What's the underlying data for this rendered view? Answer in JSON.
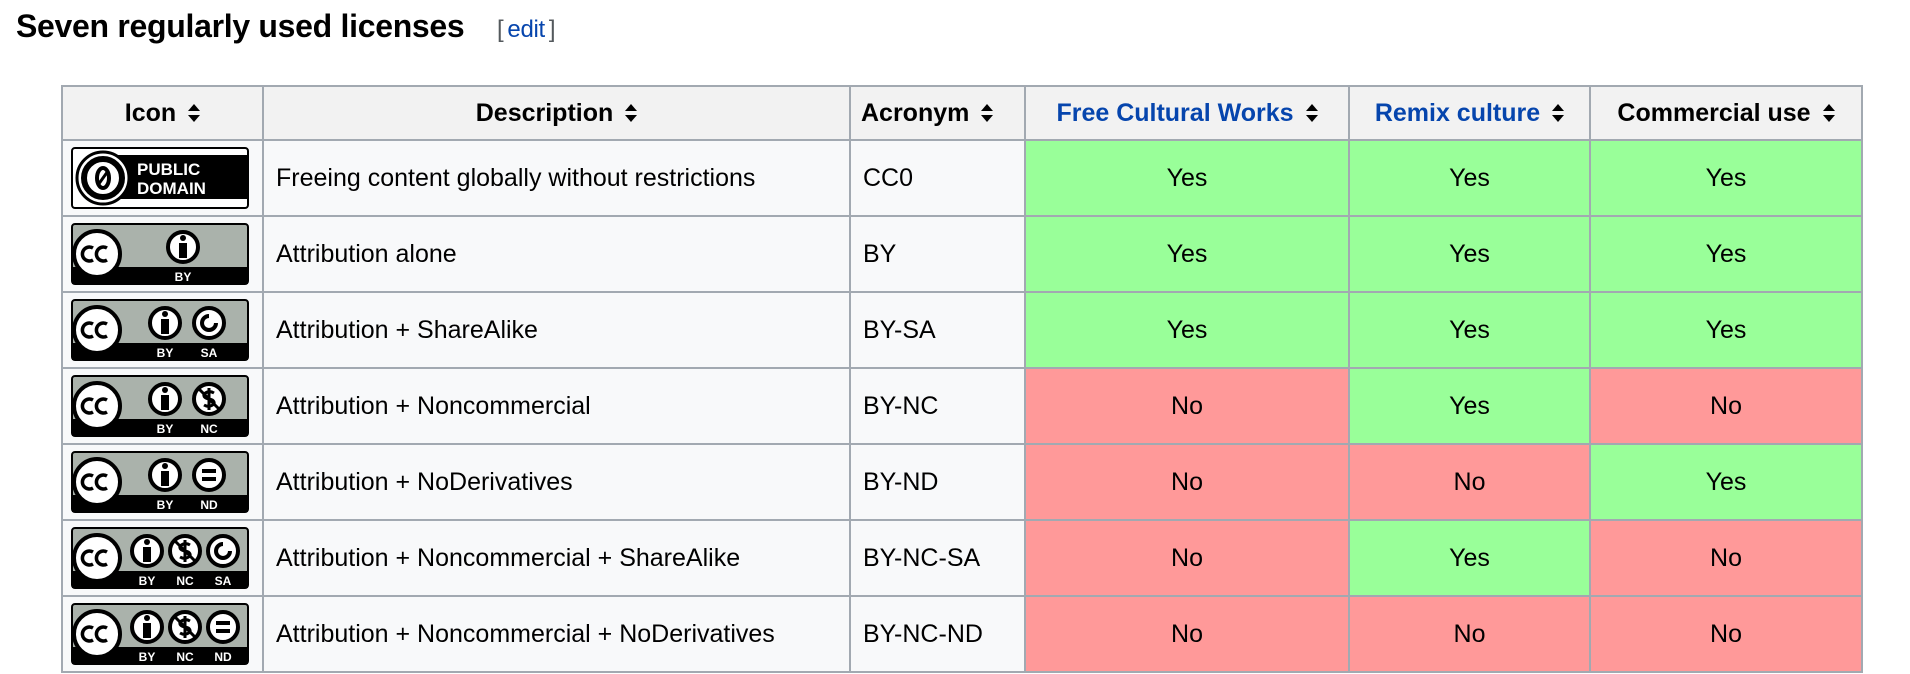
{
  "heading": {
    "title": "Seven regularly used licenses",
    "edit_open": "[",
    "edit_label": "edit",
    "edit_close": "]"
  },
  "colors": {
    "yes": "#99ff99",
    "no": "#ff9999",
    "link": "#0645ad"
  },
  "columns": [
    {
      "label": "Icon",
      "link": false
    },
    {
      "label": "Description",
      "link": false
    },
    {
      "label": "Acronym",
      "link": false
    },
    {
      "label": "Free Cultural Works",
      "link": true
    },
    {
      "label": "Remix culture",
      "link": true
    },
    {
      "label": "Commercial use",
      "link": false
    }
  ],
  "sort_icon": "sort-arrows-icon",
  "rows": [
    {
      "icon": "public-domain",
      "icon_text": [
        "PUBLIC",
        "DOMAIN"
      ],
      "description": "Freeing content globally without restrictions",
      "acronym": "CC0",
      "free": "Yes",
      "remix": "Yes",
      "commercial": "Yes"
    },
    {
      "icon": "cc-by",
      "icon_text": [
        "BY"
      ],
      "description": "Attribution alone",
      "acronym": "BY",
      "free": "Yes",
      "remix": "Yes",
      "commercial": "Yes"
    },
    {
      "icon": "cc-by-sa",
      "icon_text": [
        "BY",
        "SA"
      ],
      "description": "Attribution + ShareAlike",
      "acronym": "BY-SA",
      "free": "Yes",
      "remix": "Yes",
      "commercial": "Yes"
    },
    {
      "icon": "cc-by-nc",
      "icon_text": [
        "BY",
        "NC"
      ],
      "description": "Attribution + Noncommercial",
      "acronym": "BY-NC",
      "free": "No",
      "remix": "Yes",
      "commercial": "No"
    },
    {
      "icon": "cc-by-nd",
      "icon_text": [
        "BY",
        "ND"
      ],
      "description": "Attribution + NoDerivatives",
      "acronym": "BY-ND",
      "free": "No",
      "remix": "No",
      "commercial": "Yes"
    },
    {
      "icon": "cc-by-nc-sa",
      "icon_text": [
        "BY",
        "NC",
        "SA"
      ],
      "description": "Attribution + Noncommercial + ShareAlike",
      "acronym": "BY-NC-SA",
      "free": "No",
      "remix": "Yes",
      "commercial": "No"
    },
    {
      "icon": "cc-by-nc-nd",
      "icon_text": [
        "BY",
        "NC",
        "ND"
      ],
      "description": "Attribution + Noncommercial + NoDerivatives",
      "acronym": "BY-NC-ND",
      "free": "No",
      "remix": "No",
      "commercial": "No"
    }
  ]
}
